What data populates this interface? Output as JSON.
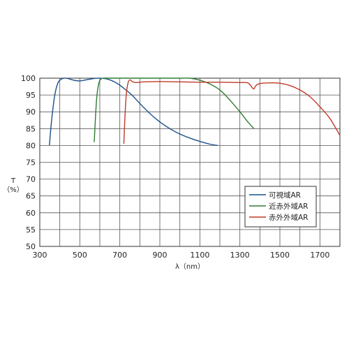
{
  "chart_data": {
    "type": "line",
    "title": "",
    "xlabel": "λ（nm）",
    "ylabel": [
      "T",
      "（%）"
    ],
    "xlim": [
      300,
      1800
    ],
    "ylim": [
      50,
      100
    ],
    "xticks": [
      300,
      500,
      700,
      900,
      1100,
      1300,
      1500,
      1700
    ],
    "yticks": [
      50,
      55,
      60,
      65,
      70,
      75,
      80,
      85,
      90,
      95,
      100
    ],
    "grid": true,
    "legend": "right-middle",
    "series": [
      {
        "name": "可視域AR",
        "color": "#1b4f8a",
        "x": [
          348,
          360,
          375,
          390,
          405,
          420,
          440,
          470,
          500,
          540,
          570,
          600,
          640,
          680,
          720,
          760,
          800,
          850,
          900,
          950,
          1000,
          1050,
          1100,
          1150,
          1190
        ],
        "y": [
          80,
          88,
          95,
          98.5,
          99.6,
          100,
          99.9,
          99.4,
          99.2,
          99.6,
          99.9,
          100,
          99.7,
          98.7,
          97,
          95,
          92.5,
          89.5,
          87,
          85,
          83.4,
          82.2,
          81.2,
          80.4,
          80
        ]
      },
      {
        "name": "近赤外域AR",
        "color": "#2e7d32",
        "x": [
          572,
          578,
          585,
          595,
          605,
          620,
          650,
          700,
          750,
          800,
          850,
          900,
          950,
          1000,
          1050,
          1100,
          1150,
          1200,
          1250,
          1300,
          1340,
          1370
        ],
        "y": [
          81,
          88,
          94.5,
          98.5,
          99.7,
          100,
          100,
          100,
          100,
          100,
          100,
          100,
          100,
          100,
          100,
          99.4,
          98.3,
          96.5,
          93.5,
          90,
          87,
          85
        ]
      },
      {
        "name": "赤外外域AR",
        "color": "#c0392b",
        "x": [
          720,
          726,
          733,
          742,
          752,
          762,
          780,
          820,
          900,
          1000,
          1100,
          1200,
          1300,
          1340,
          1360,
          1370,
          1380,
          1400,
          1450,
          1500,
          1550,
          1600,
          1650,
          1700,
          1750,
          1800
        ],
        "y": [
          80.5,
          89,
          95.5,
          98.8,
          99.5,
          99,
          98.7,
          98.9,
          99,
          98.9,
          98.8,
          98.8,
          98.7,
          98.6,
          97.3,
          96.8,
          97.8,
          98.4,
          98.6,
          98.5,
          97.8,
          96.5,
          94.5,
          91.5,
          88,
          83
        ]
      }
    ]
  }
}
